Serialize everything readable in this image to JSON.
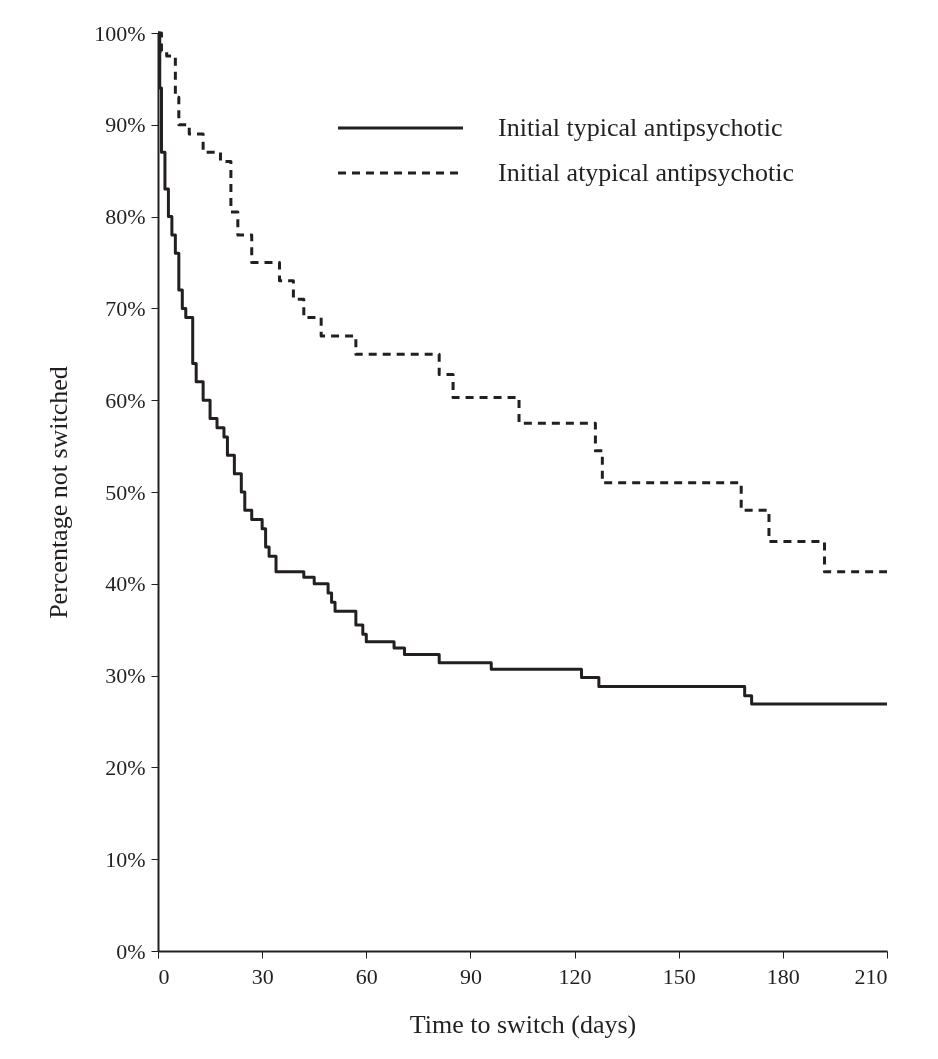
{
  "chart_data": {
    "type": "step",
    "xlabel": "Time to switch (days)",
    "ylabel": "Percentage not switched",
    "xlim": [
      0,
      210
    ],
    "xticks": [
      0,
      30,
      60,
      90,
      120,
      150,
      180,
      210
    ],
    "ylim": [
      0,
      100
    ],
    "yticks": [
      {
        "value": 0,
        "label": "0%"
      },
      {
        "value": 10,
        "label": "10%"
      },
      {
        "value": 20,
        "label": "20%"
      },
      {
        "value": 30,
        "label": "30%"
      },
      {
        "value": 40,
        "label": "40%"
      },
      {
        "value": 50,
        "label": "50%"
      },
      {
        "value": 60,
        "label": "60%"
      },
      {
        "value": 70,
        "label": "70%"
      },
      {
        "value": 80,
        "label": "80%"
      },
      {
        "value": 90,
        "label": "90%"
      },
      {
        "value": 100,
        "label": "100%"
      }
    ],
    "grid": false,
    "legend": "top right",
    "marker": "none",
    "series": [
      {
        "name": "Initial typical antipsychotic",
        "color": "#231f20",
        "line_style": "solid",
        "x": [
          0,
          0.5,
          1,
          2,
          3,
          4,
          5,
          6,
          7,
          8,
          10,
          11,
          13,
          15,
          17,
          19,
          20,
          22,
          24,
          25,
          27,
          30,
          31,
          32,
          34,
          42,
          45,
          49,
          50,
          51,
          57,
          59,
          60,
          68,
          71,
          81,
          96,
          122,
          127,
          169,
          171,
          210
        ],
        "values": [
          100,
          94,
          87,
          83,
          80,
          78,
          76,
          72,
          70,
          69,
          64,
          62,
          60,
          58,
          57,
          56,
          54,
          52,
          50,
          48,
          47,
          46,
          44,
          43,
          41.3,
          40.7,
          40,
          39,
          38,
          37,
          35.5,
          34.5,
          33.7,
          33,
          32.3,
          31.4,
          30.7,
          29.8,
          28.8,
          27.8,
          26.9,
          26.9
        ]
      },
      {
        "name": "Initial atypical antipsychotic",
        "color": "#231f20",
        "line_style": "dashed",
        "x": [
          0,
          1,
          2.5,
          5,
          6,
          9,
          13,
          18,
          21,
          23,
          27,
          35,
          39,
          42,
          47,
          57,
          81,
          85,
          104,
          126,
          128,
          168,
          176,
          192,
          210
        ],
        "values": [
          100,
          98,
          97.5,
          93,
          90,
          89,
          87,
          86,
          80.5,
          78,
          75,
          73,
          71,
          69,
          67,
          65,
          62.8,
          60.3,
          57.5,
          54.5,
          51,
          48,
          44.6,
          41.3,
          41.3
        ]
      }
    ]
  }
}
